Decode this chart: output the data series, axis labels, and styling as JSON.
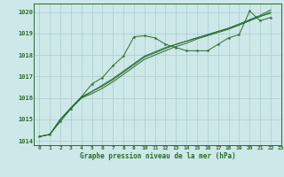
{
  "title": "",
  "xlabel": "Graphe pression niveau de la mer (hPa)",
  "bg_color": "#cce8e8",
  "grid_color": "#aacccc",
  "line_color": "#2d6a2d",
  "xlim": [
    -0.5,
    23
  ],
  "ylim": [
    1013.8,
    1020.4
  ],
  "yticks": [
    1014,
    1015,
    1016,
    1017,
    1018,
    1019,
    1020
  ],
  "xticks": [
    0,
    1,
    2,
    3,
    4,
    5,
    6,
    7,
    8,
    9,
    10,
    11,
    12,
    13,
    14,
    15,
    16,
    17,
    18,
    19,
    20,
    21,
    22,
    23
  ],
  "series_with_markers": [
    [
      0,
      1014.2
    ],
    [
      1,
      1014.3
    ],
    [
      2,
      1014.9
    ],
    [
      3,
      1015.5
    ],
    [
      4,
      1016.05
    ],
    [
      5,
      1016.65
    ],
    [
      6,
      1016.95
    ],
    [
      7,
      1017.5
    ],
    [
      8,
      1017.95
    ],
    [
      9,
      1018.85
    ],
    [
      10,
      1018.9
    ],
    [
      11,
      1018.8
    ],
    [
      12,
      1018.5
    ],
    [
      13,
      1018.35
    ],
    [
      14,
      1018.2
    ],
    [
      15,
      1018.2
    ],
    [
      16,
      1018.2
    ],
    [
      17,
      1018.5
    ],
    [
      18,
      1018.8
    ],
    [
      19,
      1018.95
    ],
    [
      20,
      1020.05
    ],
    [
      21,
      1019.6
    ],
    [
      22,
      1019.75
    ]
  ],
  "smooth_lines": [
    [
      [
        0,
        1014.2
      ],
      [
        1,
        1014.3
      ],
      [
        2,
        1015.0
      ],
      [
        3,
        1015.5
      ],
      [
        4,
        1016.0
      ],
      [
        5,
        1016.3
      ],
      [
        6,
        1016.55
      ],
      [
        7,
        1016.85
      ],
      [
        8,
        1017.2
      ],
      [
        9,
        1017.55
      ],
      [
        10,
        1017.9
      ],
      [
        11,
        1018.1
      ],
      [
        12,
        1018.3
      ],
      [
        13,
        1018.5
      ],
      [
        14,
        1018.65
      ],
      [
        15,
        1018.8
      ],
      [
        16,
        1018.95
      ],
      [
        17,
        1019.1
      ],
      [
        18,
        1019.25
      ],
      [
        19,
        1019.4
      ],
      [
        20,
        1019.6
      ],
      [
        21,
        1019.8
      ],
      [
        22,
        1020.0
      ]
    ],
    [
      [
        0,
        1014.2
      ],
      [
        1,
        1014.3
      ],
      [
        2,
        1015.0
      ],
      [
        3,
        1015.55
      ],
      [
        4,
        1016.05
      ],
      [
        5,
        1016.3
      ],
      [
        6,
        1016.6
      ],
      [
        7,
        1016.9
      ],
      [
        8,
        1017.25
      ],
      [
        9,
        1017.6
      ],
      [
        10,
        1017.95
      ],
      [
        11,
        1018.15
      ],
      [
        12,
        1018.35
      ],
      [
        13,
        1018.5
      ],
      [
        14,
        1018.65
      ],
      [
        15,
        1018.8
      ],
      [
        16,
        1018.95
      ],
      [
        17,
        1019.1
      ],
      [
        18,
        1019.25
      ],
      [
        19,
        1019.45
      ],
      [
        20,
        1019.65
      ],
      [
        21,
        1019.85
      ],
      [
        22,
        1020.1
      ]
    ],
    [
      [
        0,
        1014.2
      ],
      [
        1,
        1014.3
      ],
      [
        2,
        1015.0
      ],
      [
        3,
        1015.5
      ],
      [
        4,
        1016.0
      ],
      [
        5,
        1016.2
      ],
      [
        6,
        1016.45
      ],
      [
        7,
        1016.75
      ],
      [
        8,
        1017.1
      ],
      [
        9,
        1017.45
      ],
      [
        10,
        1017.8
      ],
      [
        11,
        1018.0
      ],
      [
        12,
        1018.2
      ],
      [
        13,
        1018.4
      ],
      [
        14,
        1018.55
      ],
      [
        15,
        1018.75
      ],
      [
        16,
        1018.9
      ],
      [
        17,
        1019.05
      ],
      [
        18,
        1019.2
      ],
      [
        19,
        1019.4
      ],
      [
        20,
        1019.6
      ],
      [
        21,
        1019.8
      ],
      [
        22,
        1019.95
      ]
    ]
  ]
}
